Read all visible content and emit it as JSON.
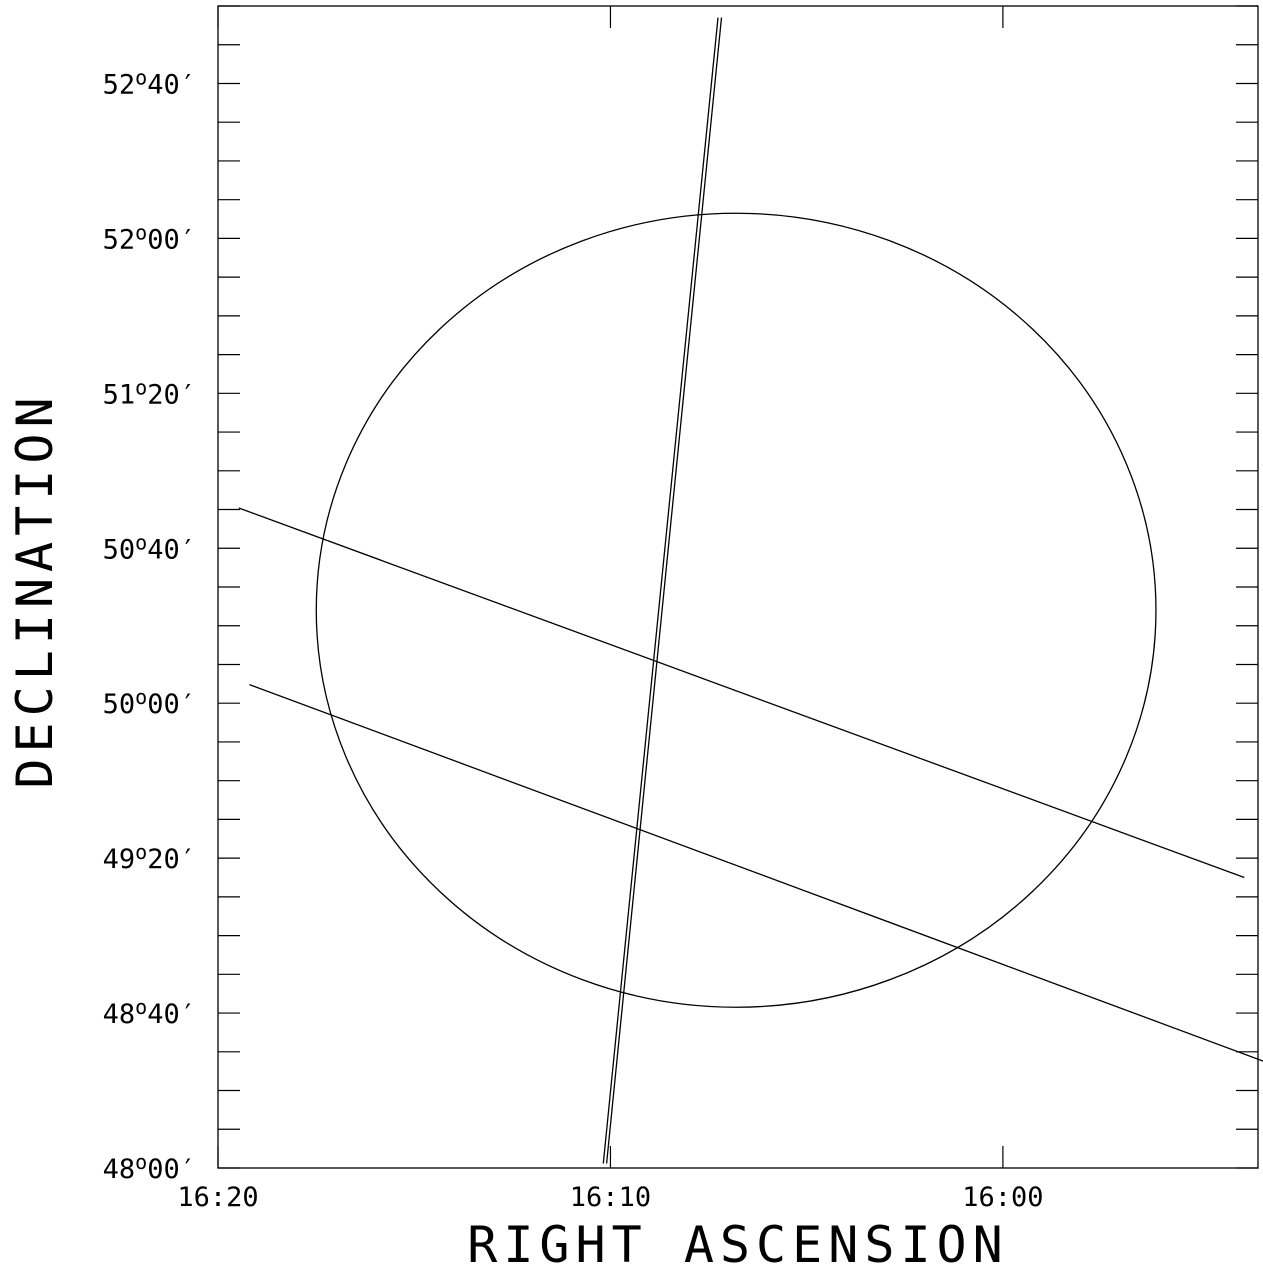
{
  "chart_data": {
    "type": "line",
    "title": "",
    "xlabel": "RIGHT ASCENSION",
    "ylabel": "DECLINATION",
    "x_unit": "minutes of RA",
    "y_unit": "arcminutes of Dec",
    "xlim": [
      16.333333,
      15.891667
    ],
    "ylim": [
      48.0,
      53.0
    ],
    "x_ticks": [
      {
        "value": 16.333333,
        "label": "16:20"
      },
      {
        "value": 16.166667,
        "label": "16:10"
      },
      {
        "value": 16.0,
        "label": "16:00"
      }
    ],
    "y_ticks": [
      {
        "value": 48.0,
        "label_deg": "48",
        "label_min": "00"
      },
      {
        "value": 48.666667,
        "label_deg": "48",
        "label_min": "40"
      },
      {
        "value": 49.333333,
        "label_deg": "49",
        "label_min": "20"
      },
      {
        "value": 50.0,
        "label_deg": "50",
        "label_min": "00"
      },
      {
        "value": 50.666667,
        "label_deg": "50",
        "label_min": "40"
      },
      {
        "value": 51.333333,
        "label_deg": "51",
        "label_min": "20"
      },
      {
        "value": 52.0,
        "label_deg": "52",
        "label_min": "00"
      },
      {
        "value": 52.666667,
        "label_deg": "52",
        "label_min": "40"
      }
    ],
    "grid": false,
    "series": [
      {
        "points": [
          [
            16.3245,
            50.84
          ],
          [
            15.8975,
            49.25
          ]
        ]
      },
      {
        "points": [
          [
            16.32,
            50.08
          ],
          [
            15.8842,
            48.44
          ]
        ]
      },
      {
        "points": [
          [
            16.1697,
            48.02
          ],
          [
            16.121,
            52.95
          ]
        ]
      },
      {
        "points": [
          [
            16.1683,
            48.02
          ],
          [
            16.1195,
            52.95
          ]
        ]
      }
    ],
    "circle": {
      "center": [
        16.1133,
        50.4
      ],
      "ra_radius": 0.1783,
      "dec_radius": 1.7083
    }
  }
}
